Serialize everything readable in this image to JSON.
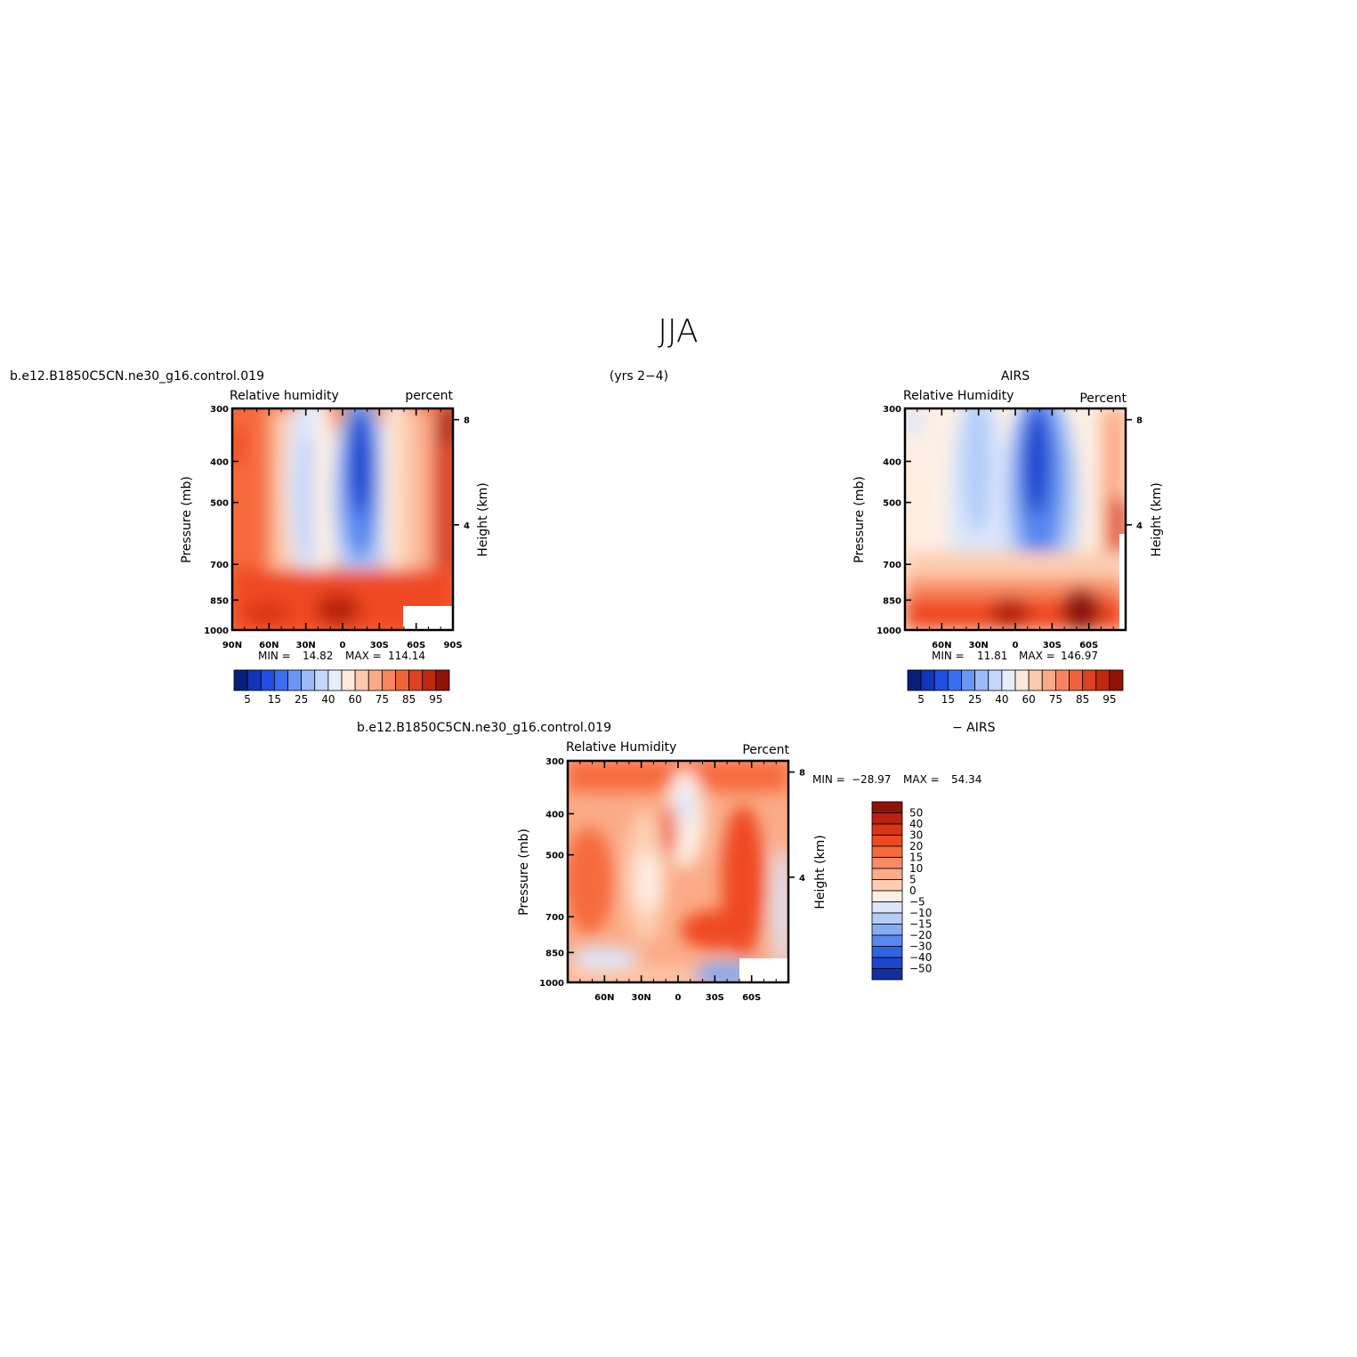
{
  "figure": {
    "title": "JJA",
    "subtitle": "(yrs 2−4)"
  },
  "panel_top_left": {
    "case": "b.e12.B1850C5CN.ne30_g16.control.019",
    "left_string": "Relative  humidity",
    "right_string": "percent",
    "ylabel": "Pressure  (mb)",
    "ylabel_right": "Height  (km)",
    "min_label": "MIN  =",
    "min_value": "14.82",
    "max_label": "MAX  =",
    "max_value": "114.14"
  },
  "panel_top_right": {
    "case": "AIRS",
    "left_string": "Relative  Humidity",
    "right_string": "Percent",
    "ylabel": "Pressure  (mb)",
    "ylabel_right": "Height  (km)",
    "min_label": "MIN  =",
    "min_value": "11.81",
    "max_label": "MAX  =",
    "max_value": "146.97"
  },
  "panel_bottom": {
    "case": "b.e12.B1850C5CN.ne30_g16.control.019",
    "case2": "−  AIRS",
    "left_string": "Relative  Humidity",
    "right_string": "Percent",
    "ylabel": "Pressure  (mb)",
    "ylabel_right": "Height  (km)",
    "min_label": "MIN  =",
    "min_value": "−28.97",
    "max_label": "MAX  =",
    "max_value": "54.34"
  },
  "chart_data": [
    {
      "type": "heatmap",
      "panel": "model",
      "x_ticks": [
        "90N",
        "60N",
        "30N",
        "0",
        "30S",
        "60S",
        "90S"
      ],
      "y_ticks": [
        "300",
        "400",
        "500",
        "700",
        "850",
        "1000"
      ],
      "y_right_ticks": [
        "8",
        "4"
      ],
      "colorbar_labels": [
        "5",
        "15",
        "25",
        "40",
        "60",
        "75",
        "85",
        "95"
      ],
      "colorbar_colors": [
        "#0a1f7a",
        "#1335b8",
        "#1f4fe0",
        "#3a6ef0",
        "#6a95f5",
        "#9bbaf8",
        "#c4d7fa",
        "#e6eefc",
        "#fde8dc",
        "#fcc9ad",
        "#fba986",
        "#f8855f",
        "#f0623a",
        "#de4020",
        "#c02810",
        "#8e140a"
      ],
      "min": 14.82,
      "max": 114.14
    },
    {
      "type": "heatmap",
      "panel": "obs",
      "x_ticks": [
        "60N",
        "30N",
        "0",
        "30S",
        "60S"
      ],
      "y_ticks": [
        "300",
        "400",
        "500",
        "700",
        "850",
        "1000"
      ],
      "y_right_ticks": [
        "8",
        "4"
      ],
      "colorbar_labels": [
        "5",
        "15",
        "25",
        "40",
        "60",
        "75",
        "85",
        "95"
      ],
      "colorbar_colors": [
        "#0a1f7a",
        "#1335b8",
        "#1f4fe0",
        "#3a6ef0",
        "#6a95f5",
        "#9bbaf8",
        "#c4d7fa",
        "#e6eefc",
        "#fde8dc",
        "#fcc9ad",
        "#fba986",
        "#f8855f",
        "#f0623a",
        "#de4020",
        "#c02810",
        "#8e140a"
      ],
      "min": 11.81,
      "max": 146.97
    },
    {
      "type": "heatmap",
      "panel": "difference",
      "x_ticks": [
        "60N",
        "30N",
        "0",
        "30S",
        "60S"
      ],
      "y_ticks": [
        "300",
        "400",
        "500",
        "700",
        "850",
        "1000"
      ],
      "y_right_ticks": [
        "8",
        "4"
      ],
      "colorbar_labels": [
        "50",
        "40",
        "30",
        "20",
        "15",
        "10",
        "5",
        "0",
        "−5",
        "−10",
        "−15",
        "−20",
        "−30",
        "−40",
        "−50"
      ],
      "colorbar_colors": [
        "#8e140a",
        "#b82210",
        "#d83418",
        "#ee4a22",
        "#f66a3c",
        "#f98c62",
        "#fbab87",
        "#fdcdb0",
        "#fdeee4",
        "#dbe6fb",
        "#b3ccf8",
        "#86acf4",
        "#5888ee",
        "#3262e4",
        "#1c44cc",
        "#10309e"
      ],
      "min": -28.97,
      "max": 54.34
    }
  ]
}
